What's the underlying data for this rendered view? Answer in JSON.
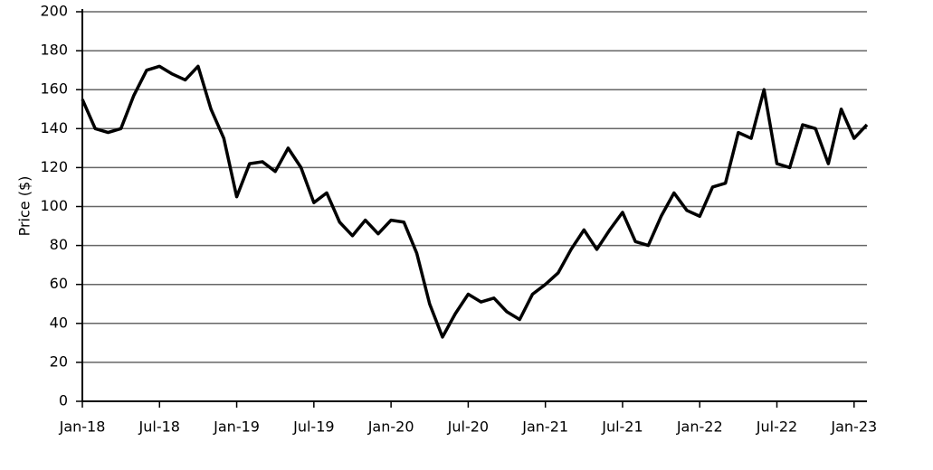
{
  "chart_data": {
    "type": "line",
    "y_label": "Price ($)",
    "x": [
      "2018-01",
      "2018-02",
      "2018-03",
      "2018-04",
      "2018-05",
      "2018-06",
      "2018-07",
      "2018-08",
      "2018-09",
      "2018-10",
      "2018-11",
      "2018-12",
      "2019-01",
      "2019-02",
      "2019-03",
      "2019-04",
      "2019-05",
      "2019-06",
      "2019-07",
      "2019-08",
      "2019-09",
      "2019-10",
      "2019-11",
      "2019-12",
      "2020-01",
      "2020-02",
      "2020-03",
      "2020-04",
      "2020-05",
      "2020-06",
      "2020-07",
      "2020-08",
      "2020-09",
      "2020-10",
      "2020-11",
      "2020-12",
      "2021-01",
      "2021-02",
      "2021-03",
      "2021-04",
      "2021-05",
      "2021-06",
      "2021-07",
      "2021-08",
      "2021-09",
      "2021-10",
      "2021-11",
      "2021-12",
      "2022-01",
      "2022-02",
      "2022-03",
      "2022-04",
      "2022-05",
      "2022-06",
      "2022-07",
      "2022-08",
      "2022-09",
      "2022-10",
      "2022-11",
      "2022-12",
      "2023-01",
      "2023-02"
    ],
    "series": [
      {
        "name": "Price",
        "color": "#000000",
        "values": [
          155,
          140,
          138,
          140,
          157,
          170,
          172,
          168,
          165,
          172,
          150,
          135,
          105,
          122,
          123,
          118,
          130,
          120,
          102,
          107,
          92,
          85,
          93,
          86,
          93,
          92,
          76,
          50,
          33,
          45,
          55,
          51,
          53,
          46,
          42,
          55,
          60,
          66,
          78,
          88,
          78,
          88,
          97,
          82,
          80,
          95,
          107,
          98,
          95,
          110,
          112,
          138,
          135,
          160,
          122,
          120,
          142,
          140,
          122,
          150,
          135,
          142
        ]
      }
    ],
    "xlim": [
      "2018-01",
      "2023-02"
    ],
    "xticks": [
      {
        "value": "2018-01",
        "label": "Jan-18"
      },
      {
        "value": "2018-07",
        "label": "Jul-18"
      },
      {
        "value": "2019-01",
        "label": "Jan-19"
      },
      {
        "value": "2019-07",
        "label": "Jul-19"
      },
      {
        "value": "2020-01",
        "label": "Jan-20"
      },
      {
        "value": "2020-07",
        "label": "Jul-20"
      },
      {
        "value": "2021-01",
        "label": "Jan-21"
      },
      {
        "value": "2021-07",
        "label": "Jul-21"
      },
      {
        "value": "2022-01",
        "label": "Jan-22"
      },
      {
        "value": "2022-07",
        "label": "Jul-22"
      },
      {
        "value": "2023-01",
        "label": "Jan-23"
      }
    ],
    "ylim": [
      0,
      200
    ],
    "yticks": [
      0,
      20,
      40,
      60,
      80,
      100,
      120,
      140,
      160,
      180,
      200
    ],
    "grid": true
  }
}
